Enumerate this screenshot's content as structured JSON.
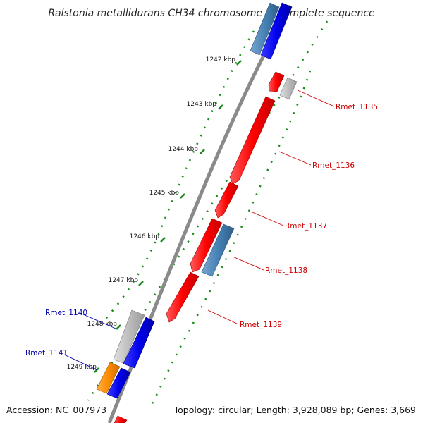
{
  "title": "Ralstonia metallidurans CH34 chromosome 1, complete sequence",
  "accession": "Accession: NC_007973",
  "topology": "Topology: circular; Length: 3,928,089 bp; Genes: 3,669",
  "ticks": [
    "1242 kbp",
    "1243 kbp",
    "1244 kbp",
    "1245 kbp",
    "1246 kbp",
    "1247 kbp",
    "1248 kbp",
    "1249 kbp"
  ],
  "colors": {
    "backbone": "#8a8a8a",
    "red": "#ff0000",
    "blue": "#0000ee",
    "steelblue": "#4682b4",
    "gray": "#bdbdbd",
    "orange": "#ff8c00",
    "green": "#1a8a1a",
    "label_red": "#cc0000",
    "label_blue": "#0000aa"
  },
  "genes": [
    {
      "name": "Rmet_1135",
      "label": "Rmet_1135",
      "color": "gray"
    },
    {
      "name": "Rmet_1136",
      "label": "Rmet_1136",
      "color": "red"
    },
    {
      "name": "Rmet_1137",
      "label": "Rmet_1137",
      "color": "red"
    },
    {
      "name": "Rmet_1138",
      "label": "Rmet_1138",
      "color": "steelblue"
    },
    {
      "name": "Rmet_1139",
      "label": "Rmet_1139",
      "color": "red"
    },
    {
      "name": "Rmet_1140",
      "label": "Rmet_1140",
      "color": "gray"
    },
    {
      "name": "Rmet_1141",
      "label": "Rmet_1141",
      "color": "orange"
    }
  ]
}
